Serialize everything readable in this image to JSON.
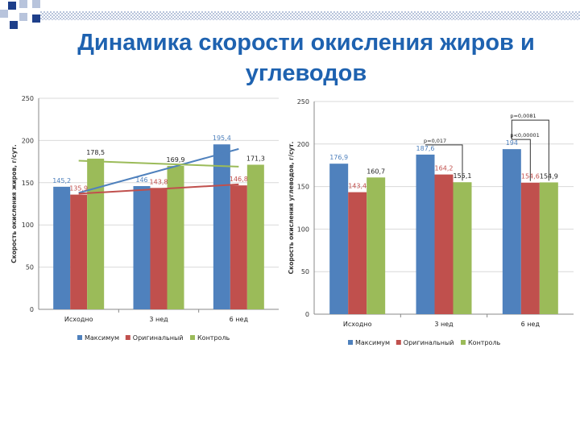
{
  "page": {
    "title_line1": "Динамика скорости окисления жиров и",
    "title_line2": "углеводов"
  },
  "colors": {
    "title": "#1e62b0",
    "series": [
      "#4f81bd",
      "#c0504d",
      "#9bbb59"
    ],
    "grid": "#d9d9d9",
    "axis": "#888888"
  },
  "chart_data": [
    {
      "type": "bar",
      "categories": [
        "Исходно",
        "3 нед",
        "6 нед"
      ],
      "series": [
        {
          "name": "Максимум",
          "values": [
            145.2,
            146,
            195.4
          ],
          "labels": [
            "145,2",
            "146",
            "195,4"
          ]
        },
        {
          "name": "Оригинальный",
          "values": [
            135.9,
            143.8,
            146.8
          ],
          "labels": [
            "135,9",
            "143,8",
            "146,8"
          ]
        },
        {
          "name": "Контроль",
          "values": [
            178.5,
            169.9,
            171.3
          ],
          "labels": [
            "178,5",
            "169,9",
            "171,3"
          ]
        }
      ],
      "trendlines": [
        {
          "series": "Максимум",
          "from": 138,
          "to": 190
        },
        {
          "series": "Оригинальный",
          "from": 137,
          "to": 148
        },
        {
          "series": "Контроль",
          "from": 176,
          "to": 169
        }
      ],
      "ylabel": "Скорость окисления жиров, г/сут.",
      "ylim": [
        0,
        250
      ],
      "yticks": [
        0,
        50,
        100,
        150,
        200,
        250
      ],
      "grid": true,
      "legend": "bottom"
    },
    {
      "type": "bar",
      "categories": [
        "Исходно",
        "3 нед",
        "6 нед"
      ],
      "series": [
        {
          "name": "Максимум",
          "values": [
            176.9,
            187.6,
            194
          ],
          "labels": [
            "176,9",
            "187,6",
            "194"
          ]
        },
        {
          "name": "Оригинальный",
          "values": [
            143.4,
            164.2,
            154.6
          ],
          "labels": [
            "143,4",
            "164,2",
            "154,6"
          ]
        },
        {
          "name": "Контроль",
          "values": [
            160.7,
            155.1,
            154.9
          ],
          "labels": [
            "160,7",
            "155,1",
            "154,9"
          ]
        }
      ],
      "annotations": [
        {
          "text": "p=0,017",
          "category": 1,
          "from": 0,
          "to": 2
        },
        {
          "text": "p=0,0081",
          "category": 2,
          "from": 0,
          "to": 2
        },
        {
          "text": "p<0,00001",
          "category": 2,
          "from": 0,
          "to": 1
        }
      ],
      "ylabel": "Скорость окисления углеводов, г/сут.",
      "ylim": [
        0,
        250
      ],
      "yticks": [
        0,
        50,
        100,
        150,
        200,
        250
      ],
      "grid": true,
      "legend": "bottom"
    }
  ]
}
